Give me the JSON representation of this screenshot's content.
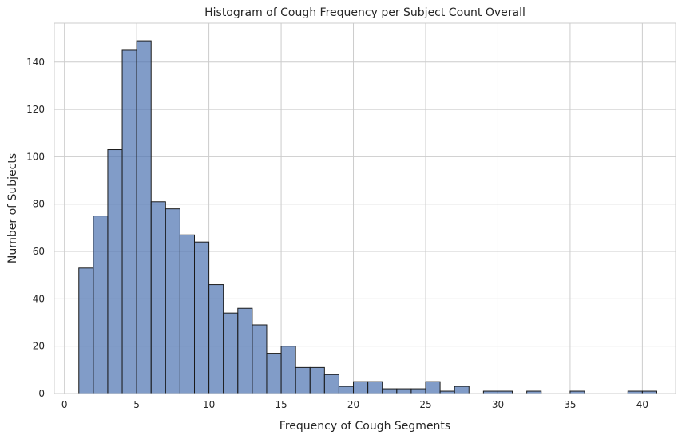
{
  "chart_data": {
    "type": "bar",
    "title": "Histogram of Cough Frequency per Subject Count Overall",
    "xlabel": "Frequency of Cough Segments",
    "ylabel": "Number of Subjects",
    "bin_width": 1,
    "bins": [
      {
        "x": 1,
        "value": 53
      },
      {
        "x": 2,
        "value": 75
      },
      {
        "x": 3,
        "value": 103
      },
      {
        "x": 4,
        "value": 145
      },
      {
        "x": 5,
        "value": 149
      },
      {
        "x": 6,
        "value": 81
      },
      {
        "x": 7,
        "value": 78
      },
      {
        "x": 8,
        "value": 67
      },
      {
        "x": 9,
        "value": 64
      },
      {
        "x": 10,
        "value": 46
      },
      {
        "x": 11,
        "value": 34
      },
      {
        "x": 12,
        "value": 36
      },
      {
        "x": 13,
        "value": 29
      },
      {
        "x": 14,
        "value": 17
      },
      {
        "x": 15,
        "value": 20
      },
      {
        "x": 16,
        "value": 11
      },
      {
        "x": 17,
        "value": 11
      },
      {
        "x": 18,
        "value": 8
      },
      {
        "x": 19,
        "value": 3
      },
      {
        "x": 20,
        "value": 5
      },
      {
        "x": 21,
        "value": 5
      },
      {
        "x": 22,
        "value": 2
      },
      {
        "x": 23,
        "value": 2
      },
      {
        "x": 24,
        "value": 2
      },
      {
        "x": 25,
        "value": 5
      },
      {
        "x": 26,
        "value": 1
      },
      {
        "x": 27,
        "value": 3
      },
      {
        "x": 29,
        "value": 1
      },
      {
        "x": 30,
        "value": 1
      },
      {
        "x": 32,
        "value": 1
      },
      {
        "x": 35,
        "value": 1
      },
      {
        "x": 39,
        "value": 1
      },
      {
        "x": 40,
        "value": 1
      }
    ],
    "xlim": [
      -0.7,
      42.3
    ],
    "ylim": [
      0,
      156.45
    ],
    "xticks": [
      0,
      5,
      10,
      15,
      20,
      25,
      30,
      35,
      40
    ],
    "yticks": [
      0,
      20,
      40,
      60,
      80,
      100,
      120,
      140
    ],
    "grid": true,
    "bar_color": "#4c72b0",
    "edge_color": "#1a1a1a"
  }
}
